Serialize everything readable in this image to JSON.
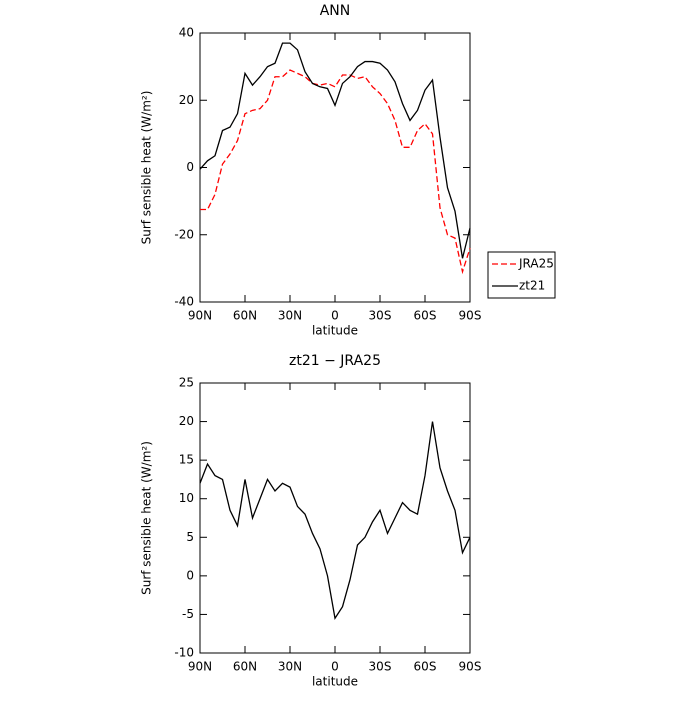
{
  "chart_data": [
    {
      "type": "line",
      "title": "ANN",
      "xlabel": "latitude",
      "ylabel": "Surf sensible heat (W/m²)",
      "x": [
        90,
        85,
        80,
        75,
        70,
        65,
        60,
        55,
        50,
        45,
        40,
        35,
        30,
        25,
        20,
        15,
        10,
        5,
        0,
        -5,
        -10,
        -15,
        -20,
        -25,
        -30,
        -35,
        -40,
        -45,
        -50,
        -55,
        -60,
        -65,
        -70,
        -75,
        -80,
        -85,
        -90
      ],
      "series": [
        {
          "name": "JRA25",
          "color": "#ff0000",
          "linestyle": "dashed",
          "values": [
            -12.5,
            -12.5,
            -8,
            1,
            4,
            8,
            16,
            17,
            17.5,
            20,
            27,
            27,
            29,
            28,
            27,
            25,
            24.5,
            25,
            24,
            27.5,
            27.5,
            26.5,
            27,
            24,
            22,
            19,
            14,
            6,
            6,
            11,
            13,
            10,
            -12,
            -20,
            -21,
            -31,
            -24
          ]
        },
        {
          "name": "zt21",
          "color": "#000000",
          "linestyle": "solid",
          "values": [
            -0.5,
            2,
            3.5,
            11,
            12,
            16,
            28,
            24.5,
            27,
            30,
            31,
            37,
            37,
            35,
            28.5,
            25,
            24,
            23.5,
            18.5,
            25,
            27,
            30,
            31.5,
            31.5,
            31,
            29,
            25.5,
            19,
            14,
            17,
            23,
            26,
            9,
            -6,
            -13,
            -27,
            -18
          ]
        }
      ],
      "xlim": [
        90,
        -90
      ],
      "xticks": [
        {
          "value": 90,
          "label": "90N"
        },
        {
          "value": 60,
          "label": "60N"
        },
        {
          "value": 30,
          "label": "30N"
        },
        0,
        {
          "value": -30,
          "label": "30S"
        },
        {
          "value": -60,
          "label": "60S"
        },
        {
          "value": -90,
          "label": "90S"
        }
      ],
      "ylim": [
        -40,
        40
      ],
      "yticks": [
        -40,
        -20,
        0,
        20,
        40
      ],
      "legend": "right"
    },
    {
      "type": "line",
      "title": "zt21 − JRA25",
      "xlabel": "latitude",
      "ylabel": "Surf sensible heat (W/m²)",
      "x": [
        90,
        85,
        80,
        75,
        70,
        65,
        60,
        55,
        50,
        45,
        40,
        35,
        30,
        25,
        20,
        15,
        10,
        5,
        0,
        -5,
        -10,
        -15,
        -20,
        -25,
        -30,
        -35,
        -40,
        -45,
        -50,
        -55,
        -60,
        -65,
        -70,
        -75,
        -80,
        -85,
        -90
      ],
      "series": [
        {
          "color": "#000000",
          "linestyle": "solid",
          "values": [
            12,
            14.5,
            13,
            12.5,
            8.5,
            6.5,
            12.5,
            7.5,
            10,
            12.5,
            11,
            12,
            11.5,
            9,
            8,
            5.5,
            3.5,
            0,
            -5.5,
            -4,
            -0.5,
            4,
            5,
            7,
            8.5,
            5.5,
            7.5,
            9.5,
            8.5,
            8,
            13,
            20,
            14,
            11,
            8.5,
            3,
            5
          ]
        }
      ],
      "xlim": [
        90,
        -90
      ],
      "xticks": [
        {
          "value": 90,
          "label": "90N"
        },
        {
          "value": 60,
          "label": "60N"
        },
        {
          "value": 30,
          "label": "30N"
        },
        0,
        {
          "value": -30,
          "label": "30S"
        },
        {
          "value": -60,
          "label": "60S"
        },
        {
          "value": -90,
          "label": "90S"
        }
      ],
      "ylim": [
        -10,
        25
      ],
      "yticks": [
        -10,
        -5,
        0,
        5,
        10,
        15,
        20,
        25
      ]
    }
  ]
}
